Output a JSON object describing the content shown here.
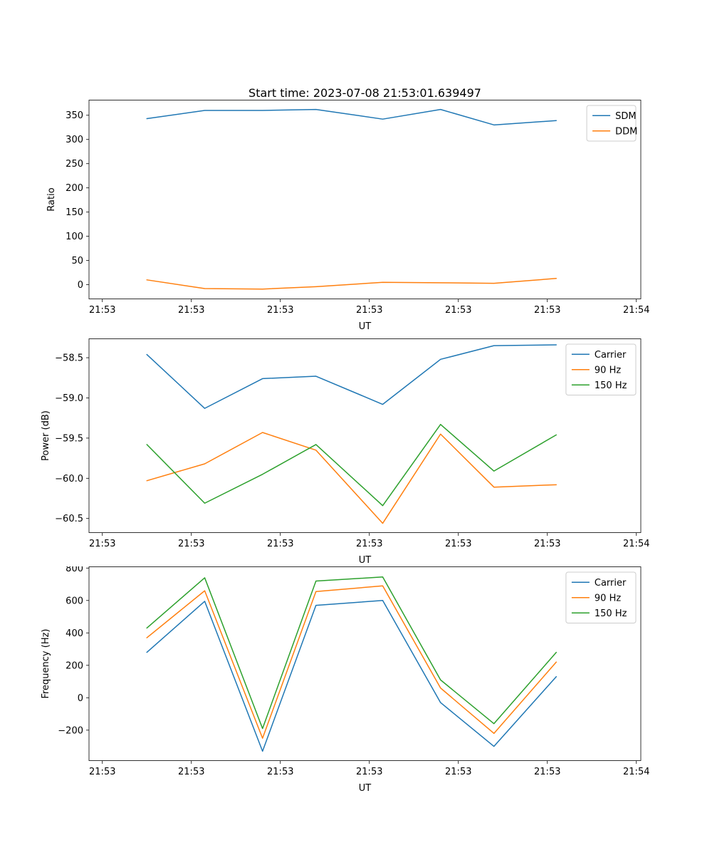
{
  "title": "Start time: 2023-07-08 21:53:01.639497",
  "colors": {
    "blue": "#1f77b4",
    "orange": "#ff7f0e",
    "green": "#2ca02c",
    "axes": "#000000",
    "legend_border": "#cccccc",
    "background": "#ffffff"
  },
  "chart_data": [
    {
      "type": "line",
      "title": "Start time: 2023-07-08 21:53:01.639497",
      "xlabel": "UT",
      "ylabel": "Ratio",
      "grid": false,
      "legend_position": "top-right",
      "x": [
        5,
        11.5,
        18,
        24,
        31.5,
        38,
        44,
        51
      ],
      "xlim": [
        -1.5,
        60.5
      ],
      "xticks": [
        0,
        10,
        20,
        30,
        40,
        50,
        60
      ],
      "xticklabels": [
        "21:53",
        "21:53",
        "21:53",
        "21:53",
        "21:53",
        "21:53",
        "21:54"
      ],
      "ylim": [
        -30,
        382
      ],
      "yticks": [
        0,
        50,
        100,
        150,
        200,
        250,
        300,
        350
      ],
      "yticklabels": [
        "0",
        "50",
        "100",
        "150",
        "200",
        "250",
        "300",
        "350"
      ],
      "series": [
        {
          "name": "SDM",
          "color": "#1f77b4",
          "values": [
            343,
            360,
            360,
            362,
            342,
            362,
            330,
            339
          ]
        },
        {
          "name": "DDM",
          "color": "#ff7f0e",
          "values": [
            10,
            -8,
            -9,
            -4,
            5,
            4,
            3,
            13
          ]
        }
      ]
    },
    {
      "type": "line",
      "title": "",
      "xlabel": "UT",
      "ylabel": "Power (dB)",
      "grid": false,
      "legend_position": "top-right",
      "x": [
        5,
        11.5,
        18,
        24,
        31.5,
        38,
        44,
        51
      ],
      "xlim": [
        -1.5,
        60.5
      ],
      "xticks": [
        0,
        10,
        20,
        30,
        40,
        50,
        60
      ],
      "xticklabels": [
        "21:53",
        "21:53",
        "21:53",
        "21:53",
        "21:53",
        "21:53",
        "21:54"
      ],
      "ylim": [
        -60.68,
        -58.26
      ],
      "yticks": [
        -58.5,
        -59.0,
        -59.5,
        -60.0,
        -60.5
      ],
      "yticklabels": [
        "-58.5",
        "-59.0",
        "-59.5",
        "-60.0",
        "-60.5"
      ],
      "series": [
        {
          "name": "Carrier",
          "color": "#1f77b4",
          "values": [
            -58.46,
            -59.13,
            -58.76,
            -58.73,
            -59.08,
            -58.52,
            -58.35,
            -58.34
          ]
        },
        {
          "name": "90 Hz",
          "color": "#ff7f0e",
          "values": [
            -60.03,
            -59.82,
            -59.43,
            -59.65,
            -60.56,
            -59.45,
            -60.11,
            -60.08
          ]
        },
        {
          "name": "150 Hz",
          "color": "#2ca02c",
          "values": [
            -59.58,
            -60.31,
            -59.95,
            -59.58,
            -60.34,
            -59.33,
            -59.91,
            -59.46
          ]
        }
      ]
    },
    {
      "type": "line",
      "title": "",
      "xlabel": "UT",
      "ylabel": "Frequency (Hz)",
      "grid": false,
      "legend_position": "top-right",
      "x": [
        5,
        11.5,
        18,
        24,
        31.5,
        38,
        44,
        51
      ],
      "xlim": [
        -1.5,
        60.5
      ],
      "xticks": [
        0,
        10,
        20,
        30,
        40,
        50,
        60
      ],
      "xticklabels": [
        "21:53",
        "21:53",
        "21:53",
        "21:53",
        "21:53",
        "21:53",
        "21:54"
      ],
      "ylim": [
        -390,
        810
      ],
      "yticks": [
        -200,
        0,
        200,
        400,
        600,
        800
      ],
      "yticklabels": [
        "-200",
        "0",
        "200",
        "400",
        "600",
        "800"
      ],
      "series": [
        {
          "name": "Carrier",
          "color": "#1f77b4",
          "values": [
            280,
            595,
            -330,
            570,
            600,
            -30,
            -300,
            130
          ]
        },
        {
          "name": "90 Hz",
          "color": "#ff7f0e",
          "values": [
            370,
            660,
            -250,
            655,
            690,
            60,
            -220,
            220
          ]
        },
        {
          "name": "150 Hz",
          "color": "#2ca02c",
          "values": [
            430,
            740,
            -190,
            720,
            745,
            110,
            -160,
            280
          ]
        }
      ]
    }
  ]
}
